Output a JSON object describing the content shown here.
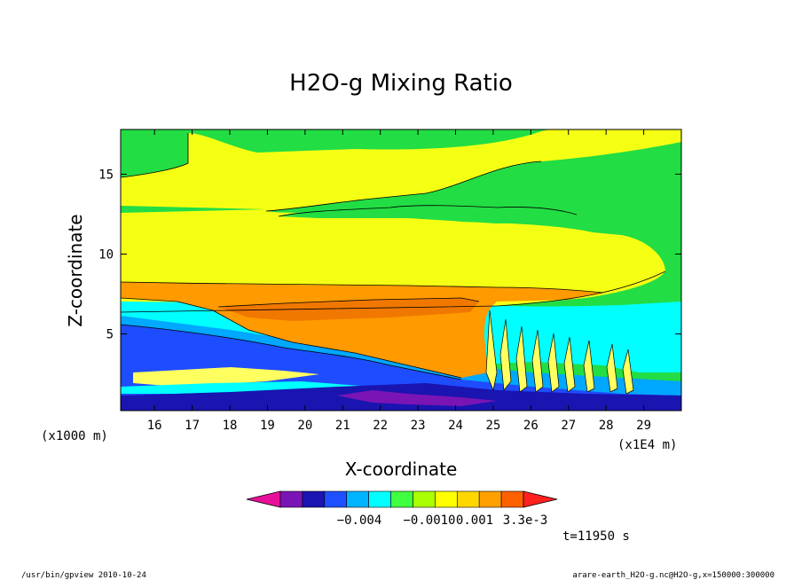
{
  "chart_data": {
    "type": "heatmap",
    "title": "H2O-g Mixing Ratio",
    "xlabel": "X-coordinate",
    "ylabel": "Z-coordinate",
    "x_unit_left": "(x1000 m)",
    "x_unit_right": "(x1E4 m)",
    "xlim": [
      15.1,
      30.0
    ],
    "ylim": [
      0.2,
      17.8
    ],
    "xticks": [
      16,
      17,
      18,
      19,
      20,
      21,
      22,
      23,
      24,
      25,
      26,
      27,
      28,
      29
    ],
    "yticks": [
      5,
      10,
      15
    ],
    "grid": false,
    "colorbar": {
      "labels": [
        "−0.004",
        "−0.0010",
        "0.001",
        "3.3e-3"
      ],
      "colors": [
        "#e8109a",
        "#7a14b4",
        "#1a14b0",
        "#1e50ff",
        "#00b4ff",
        "#00ffff",
        "#40ff40",
        "#aaff00",
        "#ffff00",
        "#ffd700",
        "#ffa000",
        "#ff6000",
        "#ff2020"
      ]
    },
    "time_label": "t=11950 s",
    "colors": {
      "green": "#22dd44",
      "yellow": "#f5ff14",
      "lightyellow": "#ffff60",
      "orange": "#ff9a00",
      "darkorange": "#f07800",
      "cyan": "#00ffff",
      "skyblue": "#00a8ff",
      "blue": "#1e4cff",
      "navy": "#1a14b0",
      "purple": "#7a14b4"
    }
  },
  "footer": {
    "left": "/usr/bin/gpview   2010-10-24",
    "right": "arare-earth_H2O-g.nc@H2O-g,x=150000:300000"
  }
}
